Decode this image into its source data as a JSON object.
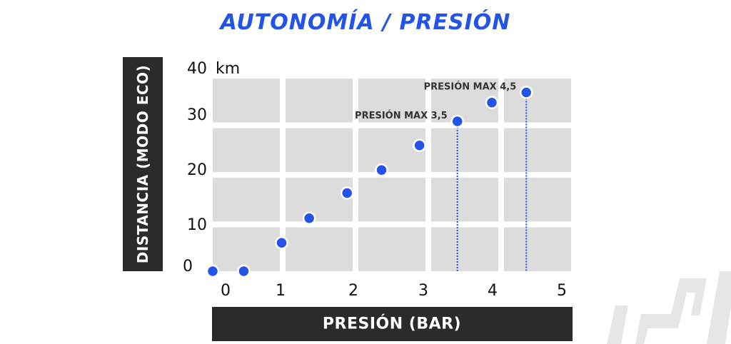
{
  "chart_data": {
    "type": "scatter",
    "title": "AUTONOMÍA / PRESIÓN",
    "xlabel": "PRESIÓN (BAR)",
    "ylabel": "DISTANCIA (MODO ECO)",
    "y_unit": "km",
    "xlim": [
      -0.2,
      5.0
    ],
    "ylim": [
      0,
      36
    ],
    "x_ticks": [
      "0",
      "1",
      "2",
      "3",
      "4",
      "5"
    ],
    "y_ticks": [
      "0",
      "10",
      "20",
      "30",
      "40"
    ],
    "series": [
      {
        "color": "#2453e8",
        "points": [
          {
            "x": -0.2,
            "y": 0
          },
          {
            "x": 0.25,
            "y": 0
          },
          {
            "x": 0.8,
            "y": 5.3
          },
          {
            "x": 1.2,
            "y": 9.9
          },
          {
            "x": 1.75,
            "y": 14.6
          },
          {
            "x": 2.25,
            "y": 18.9
          },
          {
            "x": 2.8,
            "y": 23.5
          },
          {
            "x": 3.35,
            "y": 28.0
          },
          {
            "x": 3.85,
            "y": 31.5
          },
          {
            "x": 4.35,
            "y": 33.4
          }
        ]
      }
    ],
    "annotations": [
      {
        "text": "PRESIÓN MAX 3,5",
        "x": 3.35,
        "y": 28.0
      },
      {
        "text": "PRESIÓN MAX 4,5",
        "x": 4.35,
        "y": 33.4
      }
    ],
    "grid": true
  },
  "colors": {
    "accent": "#2453e8",
    "grid_cell": "#dcdcdc",
    "label_box": "#2b2b2b"
  },
  "logo": {
    "icon": "brand-logo-icon"
  }
}
